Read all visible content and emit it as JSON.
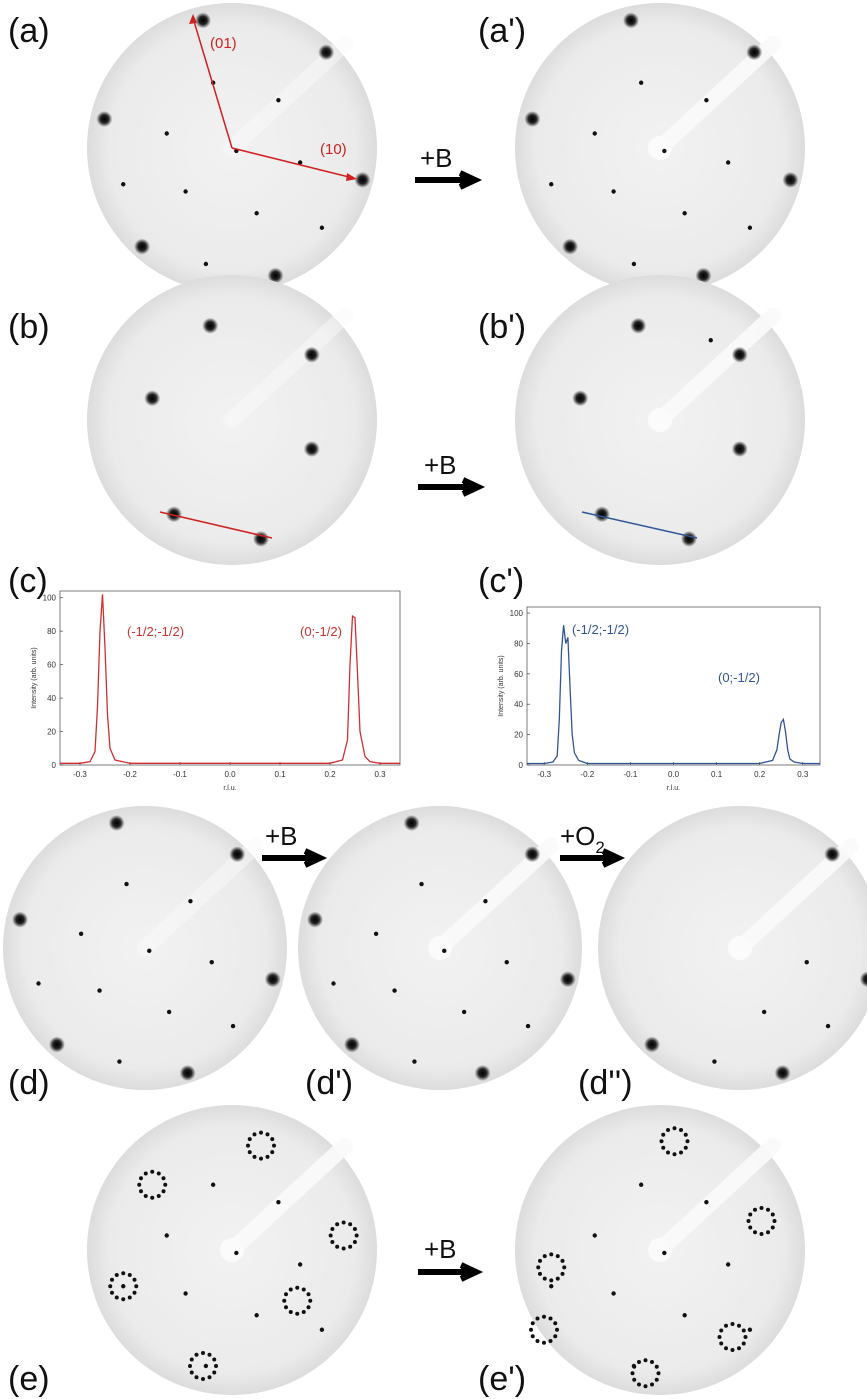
{
  "panel_labels": [
    "(a)",
    "(a')",
    "(b)",
    "(b')",
    "(c)",
    "(c')",
    "(d)",
    "(d')",
    "(d'')",
    "(e)",
    "(e')"
  ],
  "steps": [
    "+B",
    "+B",
    "+B",
    "+B"
  ],
  "oxygen_step": {
    "main": "+O",
    "sub": "2"
  },
  "directions": [
    "(01)",
    "(10)"
  ],
  "chart_data": [
    {
      "type": "line",
      "x_label": "r.l.u.",
      "y_label": "Intensity (arb. units)",
      "annotations": [
        "(-1/2;-1/2)",
        "(0;-1/2)"
      ],
      "x": [
        -0.34,
        -0.3,
        -0.28,
        -0.27,
        -0.265,
        -0.26,
        -0.255,
        -0.25,
        -0.245,
        -0.24,
        -0.23,
        -0.2,
        -0.1,
        0,
        0.1,
        0.2,
        0.225,
        0.235,
        0.24,
        0.245,
        0.25,
        0.255,
        0.26,
        0.27,
        0.28,
        0.3,
        0.34
      ],
      "series": [
        {
          "color": "#d03030",
          "values": [
            1,
            1,
            2,
            8,
            35,
            80,
            102,
            70,
            30,
            10,
            3,
            1,
            1,
            1,
            1,
            1,
            3,
            15,
            60,
            89,
            88,
            55,
            20,
            5,
            2,
            1,
            1
          ]
        }
      ],
      "xlim": [
        -0.34,
        0.34
      ],
      "ylim": [
        0,
        104
      ],
      "xticks": [
        -0.3,
        -0.2,
        -0.1,
        {
          "value": 0,
          "label": "0.0"
        },
        0.1,
        0.2,
        0.3
      ],
      "yticks": [
        0,
        20,
        40,
        60,
        80,
        100
      ]
    },
    {
      "type": "line",
      "x_label": "r.l.u.",
      "y_label": "Intensity (arb. units)",
      "annotations": [
        "(-1/2;-1/2)",
        "(0;-1/2)"
      ],
      "x": [
        -0.34,
        -0.3,
        -0.28,
        -0.27,
        -0.265,
        -0.26,
        -0.255,
        -0.25,
        -0.245,
        -0.24,
        -0.235,
        -0.23,
        -0.22,
        -0.2,
        -0.1,
        0,
        0.1,
        0.2,
        0.23,
        0.24,
        0.245,
        0.25,
        0.255,
        0.26,
        0.265,
        0.27,
        0.28,
        0.3,
        0.34
      ],
      "series": [
        {
          "color": "#2f5597",
          "values": [
            1,
            1,
            2,
            6,
            30,
            75,
            92,
            80,
            84,
            50,
            20,
            8,
            3,
            1,
            1,
            1,
            1,
            1,
            3,
            10,
            20,
            28,
            30,
            22,
            10,
            4,
            2,
            1,
            1
          ]
        }
      ],
      "xlim": [
        -0.34,
        0.34
      ],
      "ylim": [
        0,
        104
      ],
      "xticks": [
        -0.3,
        -0.2,
        -0.1,
        {
          "value": 0,
          "label": "0.0"
        },
        0.1,
        0.2,
        0.3
      ],
      "yticks": [
        0,
        20,
        40,
        60,
        80,
        100
      ]
    }
  ]
}
